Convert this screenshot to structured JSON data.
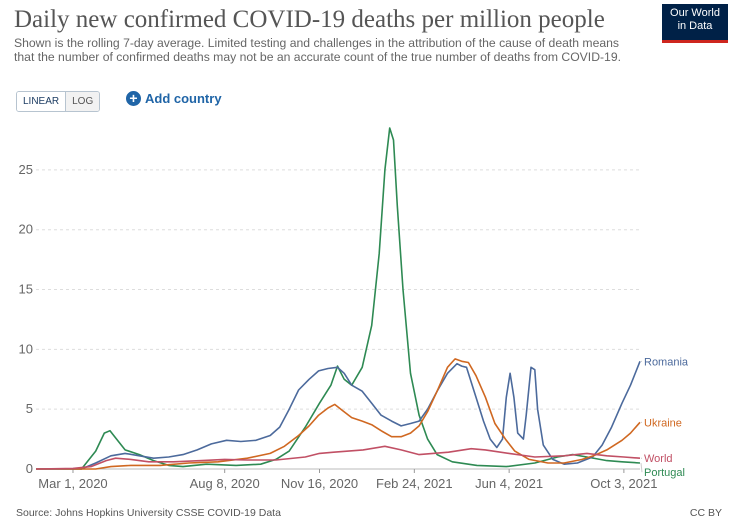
{
  "header": {
    "title": "Daily new confirmed COVID-19 deaths per million people",
    "subtitle": "Shown is the rolling 7-day average. Limited testing and challenges in the attribution of the cause of death means that the number of confirmed deaths may not be an accurate count of the true number of deaths from COVID-19."
  },
  "logo": {
    "line1": "Our World",
    "line2": "in Data"
  },
  "controls": {
    "linear_label": "LINEAR",
    "log_label": "LOG",
    "add_country_label": "Add country",
    "selected_scale": "linear"
  },
  "footer": {
    "source": "Source: Johns Hopkins University CSSE COVID-19 Data",
    "license": "CC BY"
  },
  "colors": {
    "romania": "#4c6a9c",
    "ukraine": "#d06821",
    "world": "#c15065",
    "portugal": "#2e8a53",
    "grid": "#dddddd",
    "axis_text": "#666666"
  },
  "chart_data": {
    "type": "line",
    "title": "Daily new confirmed COVID-19 deaths per million people",
    "xlabel": "",
    "ylabel": "",
    "x_axis": {
      "type": "date",
      "range": [
        "2020-01-22",
        "2021-10-20"
      ],
      "ticks": [
        {
          "date": "2020-03-01",
          "label": "Mar 1, 2020"
        },
        {
          "date": "2020-08-08",
          "label": "Aug 8, 2020"
        },
        {
          "date": "2020-11-16",
          "label": "Nov 16, 2020"
        },
        {
          "date": "2021-02-24",
          "label": "Feb 24, 2021"
        },
        {
          "date": "2021-06-04",
          "label": "Jun 4, 2021"
        },
        {
          "date": "2021-10-03",
          "label": "Oct 3, 2021"
        }
      ]
    },
    "y_axis": {
      "ticks": [
        0,
        5,
        10,
        15,
        20,
        25
      ],
      "ylim": [
        0,
        28.5
      ]
    },
    "grid": true,
    "legend": "right end labels",
    "series": [
      {
        "name": "Portugal",
        "color_key": "portugal",
        "points": [
          [
            "2020-01-22",
            0
          ],
          [
            "2020-03-10",
            0
          ],
          [
            "2020-03-25",
            1.5
          ],
          [
            "2020-04-03",
            3.0
          ],
          [
            "2020-04-09",
            3.2
          ],
          [
            "2020-04-15",
            2.6
          ],
          [
            "2020-04-25",
            1.6
          ],
          [
            "2020-05-10",
            1.2
          ],
          [
            "2020-05-25",
            0.7
          ],
          [
            "2020-06-10",
            0.3
          ],
          [
            "2020-06-25",
            0.2
          ],
          [
            "2020-07-20",
            0.4
          ],
          [
            "2020-08-20",
            0.3
          ],
          [
            "2020-09-15",
            0.4
          ],
          [
            "2020-10-01",
            0.8
          ],
          [
            "2020-10-15",
            1.5
          ],
          [
            "2020-11-01",
            3.5
          ],
          [
            "2020-11-16",
            5.5
          ],
          [
            "2020-11-28",
            7.0
          ],
          [
            "2020-12-05",
            8.6
          ],
          [
            "2020-12-12",
            7.5
          ],
          [
            "2020-12-20",
            7.0
          ],
          [
            "2020-12-31",
            8.5
          ],
          [
            "2021-01-10",
            12.0
          ],
          [
            "2021-01-18",
            18.0
          ],
          [
            "2021-01-24",
            25.0
          ],
          [
            "2021-01-29",
            28.5
          ],
          [
            "2021-02-02",
            27.5
          ],
          [
            "2021-02-06",
            22.0
          ],
          [
            "2021-02-12",
            15.0
          ],
          [
            "2021-02-20",
            8.0
          ],
          [
            "2021-03-01",
            4.5
          ],
          [
            "2021-03-10",
            2.5
          ],
          [
            "2021-03-20",
            1.2
          ],
          [
            "2021-04-05",
            0.6
          ],
          [
            "2021-05-01",
            0.3
          ],
          [
            "2021-06-01",
            0.2
          ],
          [
            "2021-07-01",
            0.5
          ],
          [
            "2021-07-25",
            1.0
          ],
          [
            "2021-08-10",
            1.2
          ],
          [
            "2021-08-25",
            1.0
          ],
          [
            "2021-09-15",
            0.7
          ],
          [
            "2021-10-01",
            0.6
          ],
          [
            "2021-10-20",
            0.5
          ]
        ]
      },
      {
        "name": "Romania",
        "color_key": "romania",
        "points": [
          [
            "2020-01-22",
            0
          ],
          [
            "2020-03-10",
            0
          ],
          [
            "2020-03-25",
            0.5
          ],
          [
            "2020-04-10",
            1.1
          ],
          [
            "2020-04-25",
            1.3
          ],
          [
            "2020-05-10",
            1.1
          ],
          [
            "2020-05-25",
            0.9
          ],
          [
            "2020-06-10",
            1.0
          ],
          [
            "2020-06-25",
            1.2
          ],
          [
            "2020-07-10",
            1.6
          ],
          [
            "2020-07-25",
            2.1
          ],
          [
            "2020-08-10",
            2.4
          ],
          [
            "2020-08-25",
            2.3
          ],
          [
            "2020-09-10",
            2.4
          ],
          [
            "2020-09-25",
            2.8
          ],
          [
            "2020-10-05",
            3.5
          ],
          [
            "2020-10-15",
            5.0
          ],
          [
            "2020-10-25",
            6.6
          ],
          [
            "2020-11-05",
            7.5
          ],
          [
            "2020-11-15",
            8.2
          ],
          [
            "2020-11-25",
            8.4
          ],
          [
            "2020-12-05",
            8.5
          ],
          [
            "2020-12-12",
            8.0
          ],
          [
            "2020-12-20",
            7.0
          ],
          [
            "2020-12-31",
            6.5
          ],
          [
            "2021-01-10",
            5.5
          ],
          [
            "2021-01-20",
            4.5
          ],
          [
            "2021-01-31",
            4.0
          ],
          [
            "2021-02-10",
            3.6
          ],
          [
            "2021-02-20",
            3.8
          ],
          [
            "2021-03-01",
            4.0
          ],
          [
            "2021-03-10",
            5.0
          ],
          [
            "2021-03-20",
            6.5
          ],
          [
            "2021-03-31",
            8.0
          ],
          [
            "2021-04-10",
            8.8
          ],
          [
            "2021-04-15",
            8.6
          ],
          [
            "2021-04-20",
            8.5
          ],
          [
            "2021-04-30",
            6.0
          ],
          [
            "2021-05-08",
            4.0
          ],
          [
            "2021-05-15",
            2.5
          ],
          [
            "2021-05-22",
            1.8
          ],
          [
            "2021-05-28",
            2.5
          ],
          [
            "2021-06-01",
            6.0
          ],
          [
            "2021-06-05",
            8.0
          ],
          [
            "2021-06-09",
            6.0
          ],
          [
            "2021-06-13",
            3.0
          ],
          [
            "2021-06-19",
            2.5
          ],
          [
            "2021-06-22",
            4.5
          ],
          [
            "2021-06-27",
            8.5
          ],
          [
            "2021-07-01",
            8.3
          ],
          [
            "2021-07-04",
            5.0
          ],
          [
            "2021-07-10",
            2.0
          ],
          [
            "2021-07-20",
            0.8
          ],
          [
            "2021-08-01",
            0.4
          ],
          [
            "2021-08-15",
            0.5
          ],
          [
            "2021-08-31",
            1.0
          ],
          [
            "2021-09-10",
            2.0
          ],
          [
            "2021-09-20",
            3.5
          ],
          [
            "2021-10-01",
            5.5
          ],
          [
            "2021-10-10",
            7.0
          ],
          [
            "2021-10-20",
            9.0
          ]
        ]
      },
      {
        "name": "Ukraine",
        "color_key": "ukraine",
        "points": [
          [
            "2020-01-22",
            0
          ],
          [
            "2020-03-25",
            0
          ],
          [
            "2020-04-10",
            0.2
          ],
          [
            "2020-05-01",
            0.3
          ],
          [
            "2020-06-01",
            0.3
          ],
          [
            "2020-07-01",
            0.5
          ],
          [
            "2020-08-01",
            0.6
          ],
          [
            "2020-09-01",
            0.9
          ],
          [
            "2020-09-25",
            1.3
          ],
          [
            "2020-10-10",
            1.9
          ],
          [
            "2020-10-25",
            2.8
          ],
          [
            "2020-11-05",
            3.6
          ],
          [
            "2020-11-15",
            4.5
          ],
          [
            "2020-11-25",
            5.1
          ],
          [
            "2020-12-02",
            5.4
          ],
          [
            "2020-12-10",
            4.9
          ],
          [
            "2020-12-20",
            4.3
          ],
          [
            "2020-12-31",
            4.0
          ],
          [
            "2021-01-10",
            3.7
          ],
          [
            "2021-01-20",
            3.2
          ],
          [
            "2021-01-31",
            2.7
          ],
          [
            "2021-02-10",
            2.7
          ],
          [
            "2021-02-20",
            3.0
          ],
          [
            "2021-03-01",
            3.6
          ],
          [
            "2021-03-10",
            4.8
          ],
          [
            "2021-03-20",
            6.5
          ],
          [
            "2021-03-31",
            8.5
          ],
          [
            "2021-04-08",
            9.2
          ],
          [
            "2021-04-15",
            9.0
          ],
          [
            "2021-04-22",
            8.9
          ],
          [
            "2021-04-30",
            7.8
          ],
          [
            "2021-05-10",
            6.0
          ],
          [
            "2021-05-20",
            3.8
          ],
          [
            "2021-05-31",
            2.5
          ],
          [
            "2021-06-10",
            1.5
          ],
          [
            "2021-06-25",
            0.8
          ],
          [
            "2021-07-15",
            0.5
          ],
          [
            "2021-08-01",
            0.5
          ],
          [
            "2021-08-20",
            0.8
          ],
          [
            "2021-09-01",
            1.1
          ],
          [
            "2021-09-15",
            1.6
          ],
          [
            "2021-10-01",
            2.4
          ],
          [
            "2021-10-10",
            3.0
          ],
          [
            "2021-10-20",
            3.9
          ]
        ]
      },
      {
        "name": "World",
        "color_key": "world",
        "points": [
          [
            "2020-01-22",
            0
          ],
          [
            "2020-03-01",
            0.05
          ],
          [
            "2020-03-20",
            0.2
          ],
          [
            "2020-04-05",
            0.7
          ],
          [
            "2020-04-15",
            0.9
          ],
          [
            "2020-05-01",
            0.8
          ],
          [
            "2020-05-20",
            0.6
          ],
          [
            "2020-06-15",
            0.6
          ],
          [
            "2020-07-15",
            0.7
          ],
          [
            "2020-08-08",
            0.8
          ],
          [
            "2020-09-01",
            0.75
          ],
          [
            "2020-10-01",
            0.75
          ],
          [
            "2020-11-01",
            1.0
          ],
          [
            "2020-11-16",
            1.3
          ],
          [
            "2020-12-01",
            1.4
          ],
          [
            "2021-01-01",
            1.6
          ],
          [
            "2021-01-24",
            1.9
          ],
          [
            "2021-02-10",
            1.6
          ],
          [
            "2021-03-01",
            1.2
          ],
          [
            "2021-04-01",
            1.4
          ],
          [
            "2021-04-25",
            1.7
          ],
          [
            "2021-05-10",
            1.6
          ],
          [
            "2021-06-04",
            1.3
          ],
          [
            "2021-07-01",
            1.0
          ],
          [
            "2021-08-01",
            1.1
          ],
          [
            "2021-08-25",
            1.3
          ],
          [
            "2021-09-15",
            1.1
          ],
          [
            "2021-10-03",
            1.0
          ],
          [
            "2021-10-20",
            0.9
          ]
        ]
      }
    ],
    "end_labels": [
      {
        "series": "Romania",
        "label": "Romania"
      },
      {
        "series": "Ukraine",
        "label": "Ukraine"
      },
      {
        "series": "World",
        "label": "World"
      },
      {
        "series": "Portugal",
        "label": "Portugal"
      }
    ]
  }
}
